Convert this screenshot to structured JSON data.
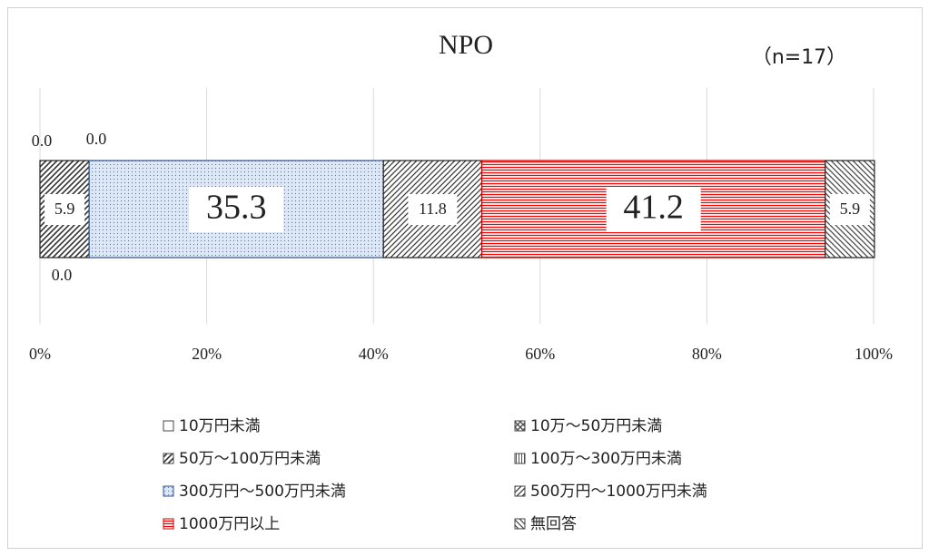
{
  "chart_data": {
    "type": "stacked_bar",
    "orientation": "horizontal",
    "title": "NPO",
    "annotation": "（n=17）",
    "xlim": [
      0,
      100
    ],
    "xticks": [
      {
        "value": 0,
        "label": "0%"
      },
      {
        "value": 20,
        "label": "20%"
      },
      {
        "value": 40,
        "label": "40%"
      },
      {
        "value": 60,
        "label": "60%"
      },
      {
        "value": 80,
        "label": "80%"
      },
      {
        "value": 100,
        "label": "100%"
      }
    ],
    "grid": true,
    "legend": "bottom",
    "series": [
      {
        "name": "10万円未満",
        "color": "#ffffff",
        "values": [
          0
        ],
        "value_labels": [
          "0.0"
        ]
      },
      {
        "name": "10万～50万円未満",
        "color": "#555555",
        "values": [
          0
        ],
        "value_labels": [
          "0.0"
        ]
      },
      {
        "name": "50万～100万円未満",
        "color": "#333333",
        "values": [
          5.9
        ],
        "value_labels": [
          "5.9"
        ]
      },
      {
        "name": "100万～300万円未満",
        "color": "#555555",
        "values": [
          0
        ],
        "value_labels": [
          "0.0"
        ]
      },
      {
        "name": "300万円～500万円未満",
        "color": "#4472c4",
        "values": [
          35.3
        ],
        "value_labels": [
          "35.3"
        ]
      },
      {
        "name": "500万円～1000万円未満",
        "color": "#333333",
        "values": [
          11.8
        ],
        "value_labels": [
          "11.8"
        ]
      },
      {
        "name": "1000万円以上",
        "color": "#ff0000",
        "values": [
          41.2
        ],
        "value_labels": [
          "41.2"
        ]
      },
      {
        "name": "無回答",
        "color": "#444444",
        "values": [
          5.9
        ],
        "value_labels": [
          "5.9"
        ]
      }
    ]
  }
}
